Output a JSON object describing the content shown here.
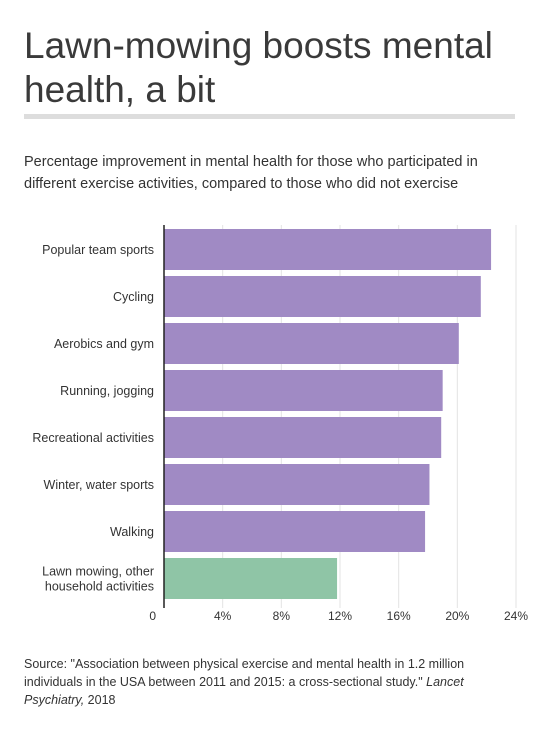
{
  "title": "Lawn-mowing boosts mental health, a bit",
  "subtitle": "Percentage improvement in mental health for those who participated in different exercise activities, compared to those who did not exercise",
  "source": {
    "text": "Source: \"Association between physical exercise and mental health in 1.2 million individuals in the USA between 2011 and 2015: a cross-sectional study.\" ",
    "journal": "Lancet Psychiatry,",
    "year": " 2018"
  },
  "colors": {
    "default_bar": "#a08ac4",
    "highlight_bar": "#8fc5a6",
    "title_rule": "#dddddd",
    "grid": "#e3e3e3",
    "axis": "#222222"
  },
  "chart_data": {
    "type": "bar",
    "orientation": "horizontal",
    "title": "",
    "xlabel": "",
    "ylabel": "",
    "categories": [
      "Popular team sports",
      "Cycling",
      "Aerobics and gym",
      "Running, jogging",
      "Recreational activities",
      "Winter, water sports",
      "Walking",
      "Lawn mowing, other household activities"
    ],
    "values": [
      22.3,
      21.6,
      20.1,
      19.0,
      18.9,
      18.1,
      17.8,
      11.8
    ],
    "highlight": [
      "Lawn mowing, other household activities"
    ],
    "xlim": [
      0,
      24
    ],
    "ticks": [
      0,
      4,
      8,
      12,
      16,
      20,
      24
    ],
    "tick_labels": [
      "0",
      "4%",
      "8%",
      "12%",
      "16%",
      "20%",
      "24%"
    ],
    "grid": true
  }
}
